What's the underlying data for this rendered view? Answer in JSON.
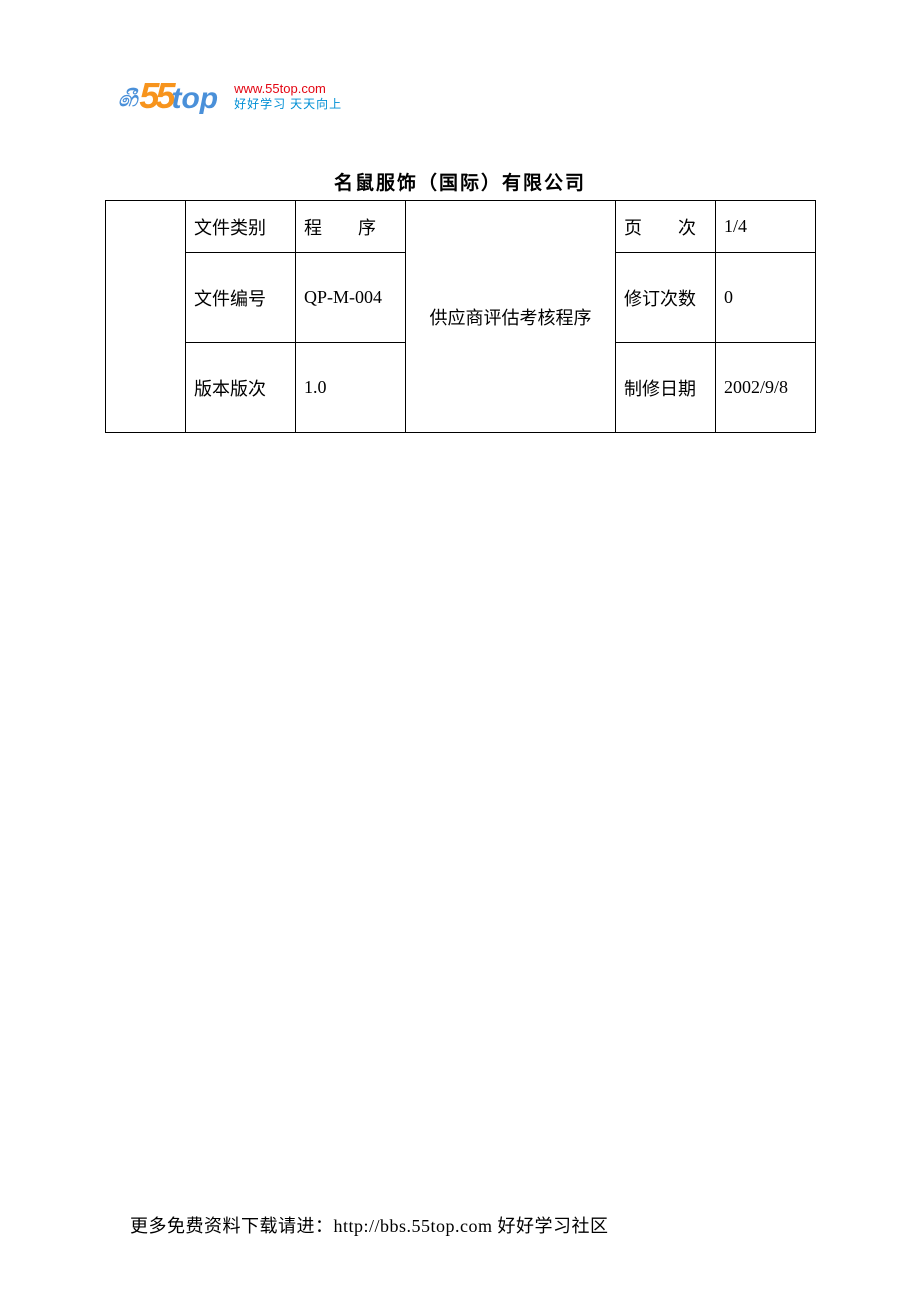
{
  "logo": {
    "url": "www.55top.com",
    "slogan": "好好学习 天天向上"
  },
  "title": "名鼠服饰（国际）有限公司",
  "table": {
    "center_text": "供应商评估考核程序",
    "rows": [
      {
        "label1": "文件类别",
        "value1": "程　　序",
        "label2": "页　　次",
        "value2": "1/4"
      },
      {
        "label1": "文件编号",
        "value1": "QP-M-004",
        "label2": "修订次数",
        "value2": "0"
      },
      {
        "label1": "版本版次",
        "value1": "1.0",
        "label2": "制修日期",
        "value2": "2002/9/8"
      }
    ]
  },
  "footer": "更多免费资料下载请进：http://bbs.55top.com 好好学习社区",
  "colors": {
    "text": "#000000",
    "border": "#000000",
    "background": "#ffffff",
    "logo_orange": "#f7941d",
    "logo_blue": "#4a90d9",
    "logo_red": "#e30613",
    "logo_cyan": "#008fd5"
  }
}
